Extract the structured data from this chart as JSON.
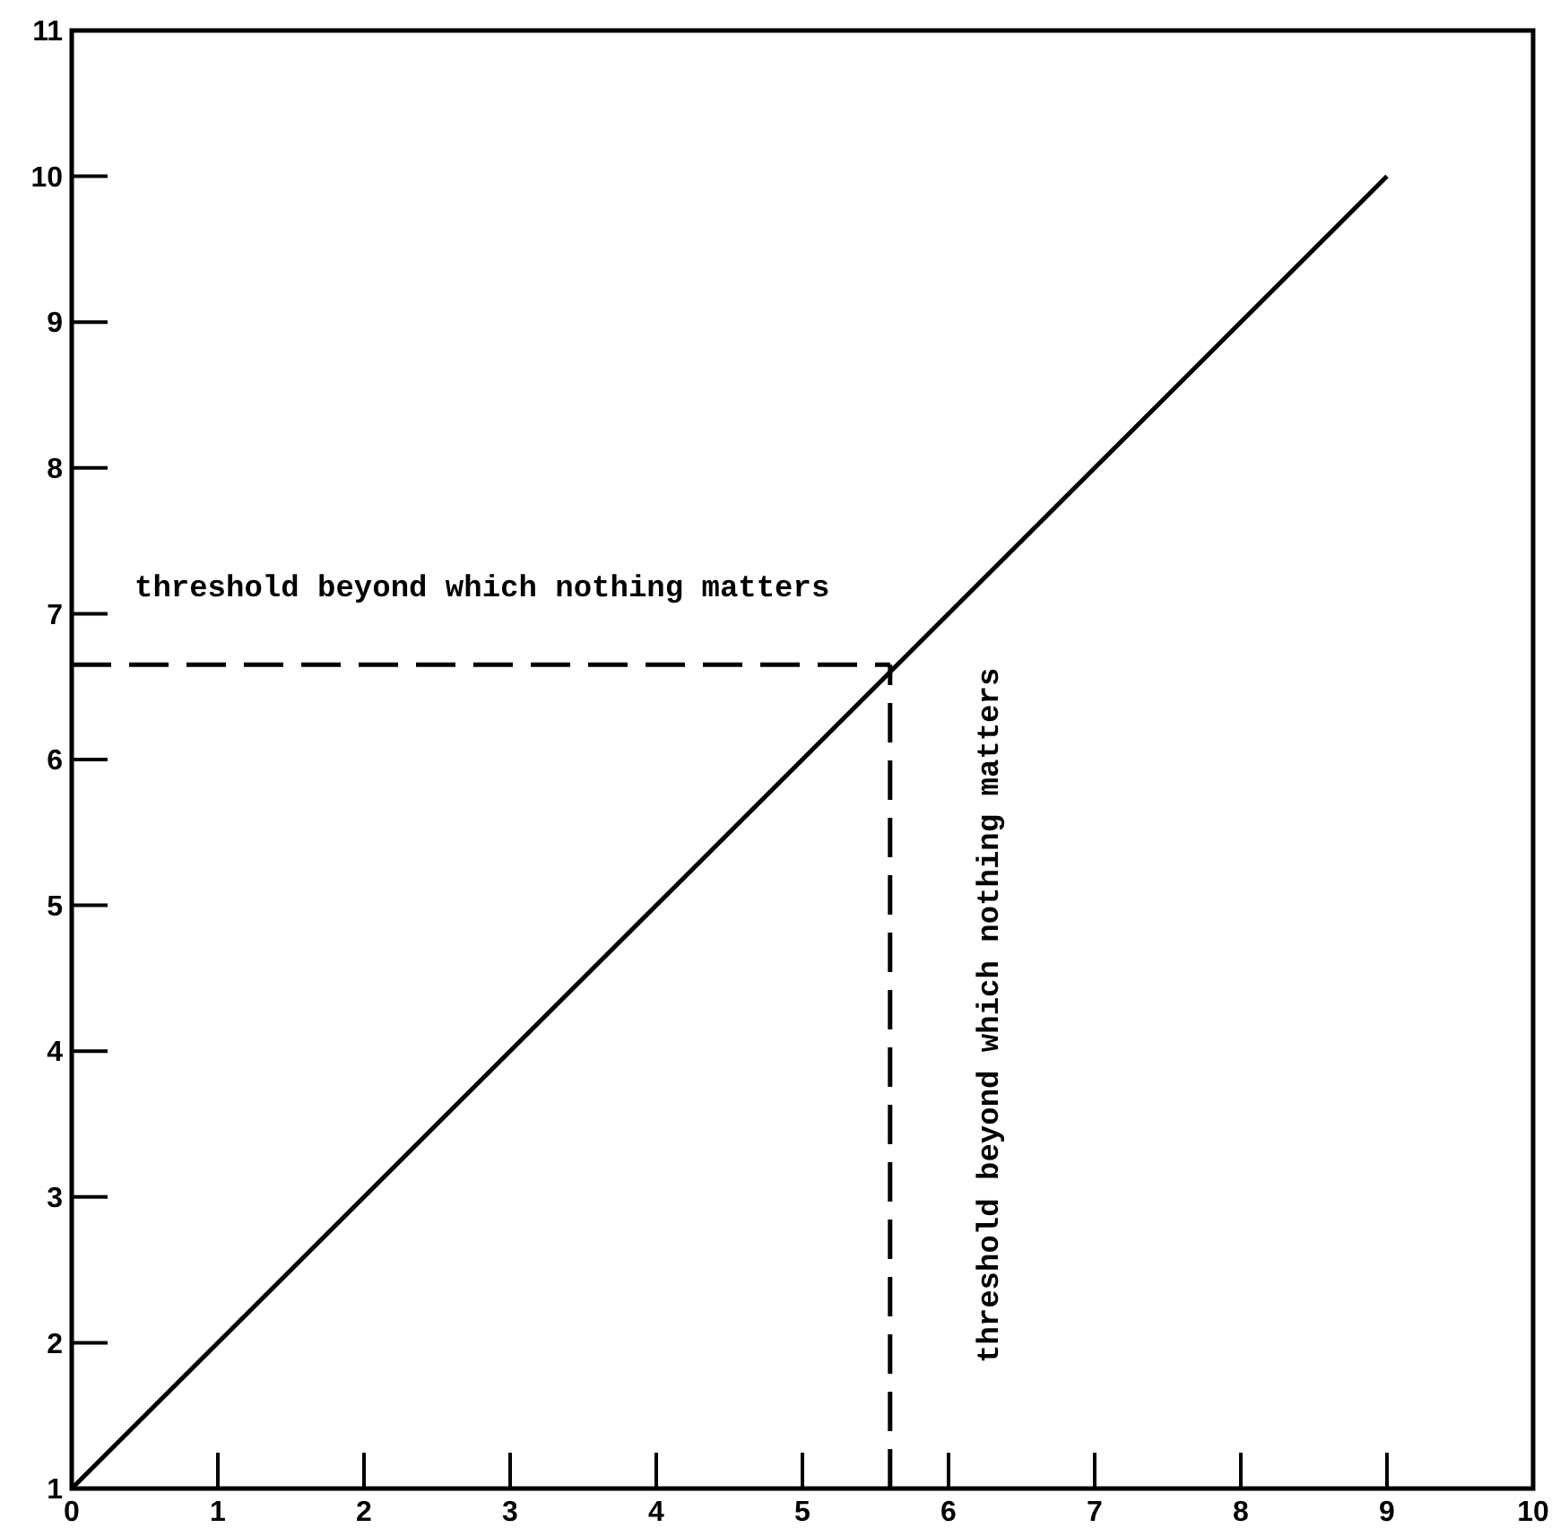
{
  "chart_data": {
    "type": "line",
    "x": [
      0,
      9
    ],
    "series": [
      {
        "color": "#000000",
        "values": [
          1,
          10
        ]
      }
    ],
    "xlim": [
      0,
      10
    ],
    "ylim": [
      1,
      11
    ],
    "xticks": [
      0,
      1,
      2,
      3,
      4,
      5,
      6,
      7,
      8,
      9,
      10
    ],
    "yticks": [
      1,
      2,
      3,
      4,
      5,
      6,
      7,
      8,
      9,
      10,
      11
    ],
    "grid": false,
    "marker": "none",
    "line_style": "solid",
    "ref_lines": [
      {
        "axis": "y",
        "value": 6.65,
        "label": "threshold beyond which nothing matters",
        "line_style": "dashed",
        "color": "#000000"
      },
      {
        "axis": "x",
        "value": 5.6,
        "label": "threshold beyond which nothing matters",
        "line_style": "dashed",
        "color": "#000000"
      }
    ]
  }
}
